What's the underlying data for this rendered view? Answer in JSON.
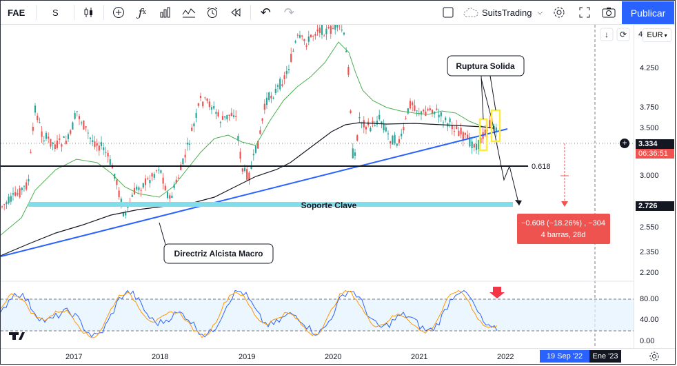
{
  "toolbar": {
    "symbol": "FAE",
    "interval": "S",
    "account": "SuitsTrading",
    "publish_label": "Publicar"
  },
  "chart": {
    "currency": "EUR",
    "price_axis_top": "4",
    "price_labels": [
      "4.250",
      "3.750",
      "3.500",
      "3.000",
      "2.550",
      "2.350",
      "2.200"
    ],
    "current_price": "3.334",
    "countdown": "06:36:51",
    "support_price": "2.726",
    "fib_label": "0.618",
    "support_label": "Soporte Clave",
    "breakout_label": "Ruptura Solida",
    "trendline_label": "Directriz Alcista Macro",
    "measure_line1": "−0.608 (−18.26%) , −304",
    "measure_line2": "4 barras, 28d",
    "colors": {
      "up": "#26a69a",
      "down": "#ef5350",
      "trendline": "#2962ff",
      "support": "#80deea",
      "ma_green": "#4caf50",
      "ma_black": "#131722",
      "breakout_box": "#ffeb3b"
    }
  },
  "oscillator": {
    "levels": [
      "80.00",
      "40.00",
      "0.00"
    ]
  },
  "time_axis": {
    "years": [
      "2017",
      "2018",
      "2019",
      "2020",
      "2021",
      "2022"
    ],
    "cursor_date": "19 Sep '22",
    "cursor_date2": "Ene '23"
  }
}
